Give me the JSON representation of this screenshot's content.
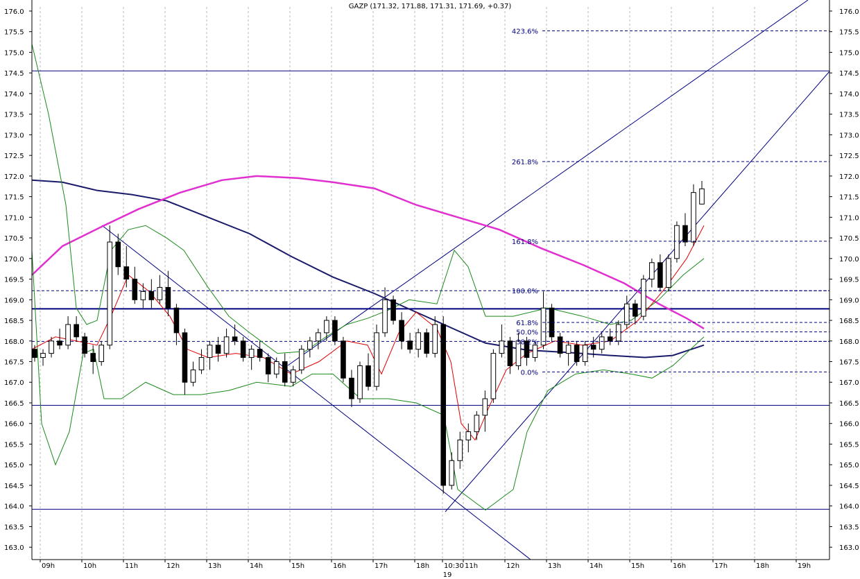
{
  "chart_data": {
    "type": "candlestick",
    "title": "GAZP (171.32, 171.88, 171.31, 171.69, +0.37)",
    "y_range": [
      162.7,
      176.1
    ],
    "y_ticks": [
      163.0,
      163.5,
      164.0,
      164.5,
      165.0,
      165.5,
      166.0,
      166.5,
      167.0,
      167.5,
      168.0,
      168.5,
      169.0,
      169.5,
      170.0,
      170.5,
      171.0,
      171.5,
      172.0,
      172.5,
      173.0,
      173.5,
      174.0,
      174.5,
      175.0,
      175.5,
      176.0
    ],
    "x_labels": [
      "09h",
      "10h",
      "11h",
      "12h",
      "13h",
      "14h",
      "15h",
      "16h",
      "17h",
      "18h",
      "10:30",
      "11h",
      "12h",
      "13h",
      "14h",
      "15h",
      "16h",
      "17h",
      "18h",
      "19h"
    ],
    "date_label": "19",
    "grid": true,
    "fib_levels": [
      {
        "label": "423.6%",
        "value": 175.52
      },
      {
        "label": "261.8%",
        "value": 172.35
      },
      {
        "label": "161.8%",
        "value": 170.42
      },
      {
        "label": "100.0%",
        "value": 169.22
      },
      {
        "label": "61.8%",
        "value": 168.45
      },
      {
        "label": "50.0%",
        "value": 168.22
      },
      {
        "label": "38.2%",
        "value": 167.99
      },
      {
        "label": "0.0%",
        "value": 167.25
      }
    ],
    "horizontal_levels": [
      174.55,
      168.78,
      166.44,
      163.92
    ],
    "series": [
      {
        "values": [
          [
            167.8,
            167.9,
            167.5,
            167.6
          ],
          [
            167.6,
            167.8,
            167.4,
            167.7
          ],
          [
            167.7,
            168.1,
            167.6,
            168.0
          ],
          [
            168.0,
            168.3,
            167.8,
            167.9
          ],
          [
            167.9,
            168.6,
            167.8,
            168.4
          ],
          [
            168.4,
            168.6,
            168.0,
            168.1
          ],
          [
            168.1,
            168.2,
            167.6,
            167.7
          ],
          [
            167.7,
            167.9,
            167.2,
            167.5
          ],
          [
            167.5,
            168.0,
            167.4,
            167.9
          ],
          [
            167.9,
            170.8,
            167.8,
            170.4
          ],
          [
            170.4,
            170.6,
            169.6,
            169.8
          ],
          [
            169.8,
            170.3,
            169.3,
            169.5
          ],
          [
            169.5,
            169.8,
            168.9,
            169.0
          ],
          [
            169.0,
            169.4,
            168.8,
            169.2
          ],
          [
            169.2,
            169.5,
            168.8,
            169.0
          ],
          [
            169.0,
            169.6,
            168.9,
            169.3
          ],
          [
            169.3,
            169.7,
            168.6,
            168.8
          ],
          [
            168.8,
            168.9,
            167.9,
            168.2
          ],
          [
            168.2,
            168.3,
            166.7,
            167.0
          ],
          [
            167.0,
            167.5,
            166.9,
            167.3
          ],
          [
            167.3,
            167.8,
            167.2,
            167.6
          ],
          [
            167.6,
            168.0,
            167.3,
            167.9
          ],
          [
            167.9,
            168.1,
            167.5,
            167.7
          ],
          [
            167.7,
            168.3,
            167.6,
            168.1
          ],
          [
            168.1,
            168.4,
            167.9,
            168.0
          ],
          [
            168.0,
            168.1,
            167.5,
            167.6
          ],
          [
            167.6,
            167.9,
            167.3,
            167.8
          ],
          [
            167.8,
            168.0,
            167.5,
            167.6
          ],
          [
            167.6,
            167.7,
            167.0,
            167.2
          ],
          [
            167.2,
            167.6,
            167.1,
            167.5
          ],
          [
            167.5,
            167.7,
            166.9,
            167.0
          ],
          [
            167.0,
            167.4,
            166.9,
            167.3
          ],
          [
            167.3,
            167.9,
            167.2,
            167.8
          ],
          [
            167.8,
            168.1,
            167.6,
            168.0
          ],
          [
            168.0,
            168.3,
            167.8,
            168.2
          ],
          [
            168.2,
            168.6,
            168.0,
            168.5
          ],
          [
            168.5,
            168.6,
            167.9,
            168.0
          ],
          [
            168.0,
            168.1,
            167.0,
            167.1
          ],
          [
            167.1,
            167.3,
            166.4,
            166.6
          ],
          [
            166.6,
            167.5,
            166.5,
            167.4
          ],
          [
            167.4,
            167.7,
            166.8,
            166.9
          ],
          [
            166.9,
            168.4,
            166.8,
            168.2
          ],
          [
            168.2,
            169.3,
            168.1,
            169.0
          ],
          [
            169.0,
            169.1,
            168.4,
            168.5
          ],
          [
            168.5,
            168.7,
            167.8,
            168.0
          ],
          [
            168.0,
            168.2,
            167.7,
            167.8
          ],
          [
            167.8,
            168.3,
            167.6,
            168.2
          ],
          [
            168.2,
            168.3,
            167.6,
            167.7
          ],
          [
            167.7,
            168.6,
            167.6,
            168.4
          ],
          [
            168.4,
            168.6,
            164.3,
            164.5
          ],
          [
            164.5,
            165.3,
            164.4,
            165.1
          ],
          [
            165.1,
            165.8,
            164.9,
            165.6
          ],
          [
            165.6,
            166.0,
            165.3,
            165.8
          ],
          [
            165.8,
            166.3,
            165.6,
            166.2
          ],
          [
            166.2,
            166.8,
            165.8,
            166.6
          ],
          [
            166.6,
            167.8,
            166.5,
            167.7
          ],
          [
            167.7,
            168.4,
            167.6,
            168.0
          ],
          [
            168.0,
            168.1,
            167.2,
            167.4
          ],
          [
            167.4,
            168.2,
            167.3,
            168.0
          ],
          [
            168.0,
            168.1,
            167.4,
            167.6
          ],
          [
            167.6,
            168.0,
            167.5,
            167.9
          ],
          [
            167.9,
            169.2,
            167.8,
            168.8
          ],
          [
            168.8,
            168.9,
            168.0,
            168.1
          ],
          [
            168.1,
            168.2,
            167.6,
            167.7
          ],
          [
            167.7,
            168.0,
            167.4,
            167.9
          ],
          [
            167.9,
            168.0,
            167.4,
            167.5
          ],
          [
            167.5,
            168.0,
            167.4,
            167.9
          ],
          [
            167.9,
            168.1,
            167.6,
            167.8
          ],
          [
            167.8,
            168.2,
            167.7,
            168.1
          ],
          [
            168.1,
            168.3,
            167.9,
            168.0
          ],
          [
            168.0,
            168.5,
            167.9,
            168.4
          ],
          [
            168.4,
            169.1,
            168.3,
            168.9
          ],
          [
            168.9,
            169.0,
            168.4,
            168.6
          ],
          [
            168.6,
            169.6,
            168.5,
            169.5
          ],
          [
            169.5,
            170.0,
            169.3,
            169.9
          ],
          [
            169.9,
            170.1,
            169.2,
            169.3
          ],
          [
            169.3,
            170.1,
            169.2,
            170.0
          ],
          [
            170.0,
            170.9,
            169.9,
            170.8
          ],
          [
            170.8,
            171.1,
            170.3,
            170.4
          ],
          [
            170.4,
            171.8,
            170.3,
            171.6
          ],
          [
            171.32,
            171.88,
            171.31,
            171.69
          ]
        ]
      }
    ]
  }
}
